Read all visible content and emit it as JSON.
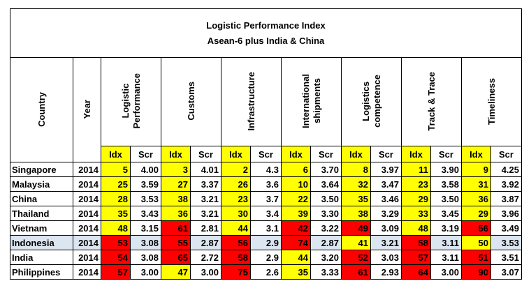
{
  "title": "Logistic Performance Index",
  "subtitle": "Asean-6 plus India & China",
  "headers": {
    "country": "Country",
    "year": "Year",
    "metrics": [
      [
        "Logistic",
        "Performance"
      ],
      [
        "Customs"
      ],
      [
        "Infrastructure"
      ],
      [
        "International",
        "shipments"
      ],
      [
        "Logistics",
        "competence"
      ],
      [
        "Track & Trace"
      ],
      [
        "Timeliness"
      ]
    ],
    "idx": "Idx",
    "scr": "Scr"
  },
  "colors": {
    "yellow": "#ffff00",
    "red": "#ff0000",
    "highlight_row": "#dce6f1"
  },
  "rows": [
    {
      "country": "Singapore",
      "year": "2014",
      "cells": [
        {
          "idx": "5",
          "scr": "4.00",
          "c": "y"
        },
        {
          "idx": "3",
          "scr": "4.01",
          "c": "y"
        },
        {
          "idx": "2",
          "scr": "4.3",
          "c": "y"
        },
        {
          "idx": "6",
          "scr": "3.70",
          "c": "y"
        },
        {
          "idx": "8",
          "scr": "3.97",
          "c": "y"
        },
        {
          "idx": "11",
          "scr": "3.90",
          "c": "y"
        },
        {
          "idx": "9",
          "scr": "4.25",
          "c": "y"
        }
      ]
    },
    {
      "country": "Malaysia",
      "year": "2014",
      "cells": [
        {
          "idx": "25",
          "scr": "3.59",
          "c": "y"
        },
        {
          "idx": "27",
          "scr": "3.37",
          "c": "y"
        },
        {
          "idx": "26",
          "scr": "3.6",
          "c": "y"
        },
        {
          "idx": "10",
          "scr": "3.64",
          "c": "y"
        },
        {
          "idx": "32",
          "scr": "3.47",
          "c": "y"
        },
        {
          "idx": "23",
          "scr": "3.58",
          "c": "y"
        },
        {
          "idx": "31",
          "scr": "3.92",
          "c": "y"
        }
      ]
    },
    {
      "country": "China",
      "year": "2014",
      "cells": [
        {
          "idx": "28",
          "scr": "3.53",
          "c": "y"
        },
        {
          "idx": "38",
          "scr": "3.21",
          "c": "y"
        },
        {
          "idx": "23",
          "scr": "3.7",
          "c": "y"
        },
        {
          "idx": "22",
          "scr": "3.50",
          "c": "y"
        },
        {
          "idx": "35",
          "scr": "3.46",
          "c": "y"
        },
        {
          "idx": "29",
          "scr": "3.50",
          "c": "y"
        },
        {
          "idx": "36",
          "scr": "3.87",
          "c": "y"
        }
      ]
    },
    {
      "country": "Thailand",
      "year": "2014",
      "cells": [
        {
          "idx": "35",
          "scr": "3.43",
          "c": "y"
        },
        {
          "idx": "36",
          "scr": "3.21",
          "c": "y"
        },
        {
          "idx": "30",
          "scr": "3.4",
          "c": "y"
        },
        {
          "idx": "39",
          "scr": "3.30",
          "c": "y"
        },
        {
          "idx": "38",
          "scr": "3.29",
          "c": "y"
        },
        {
          "idx": "33",
          "scr": "3.45",
          "c": "y"
        },
        {
          "idx": "29",
          "scr": "3.96",
          "c": "y"
        }
      ]
    },
    {
      "country": "Vietnam",
      "year": "2014",
      "cells": [
        {
          "idx": "48",
          "scr": "3.15",
          "c": "y"
        },
        {
          "idx": "61",
          "scr": "2.81",
          "c": "r"
        },
        {
          "idx": "44",
          "scr": "3.1",
          "c": "y"
        },
        {
          "idx": "42",
          "scr": "3.22",
          "c": "r"
        },
        {
          "idx": "49",
          "scr": "3.09",
          "c": "r"
        },
        {
          "idx": "48",
          "scr": "3.19",
          "c": "y"
        },
        {
          "idx": "56",
          "scr": "3.49",
          "c": "r"
        }
      ]
    },
    {
      "country": "Indonesia",
      "year": "2014",
      "highlight": true,
      "cells": [
        {
          "idx": "53",
          "scr": "3.08",
          "c": "r"
        },
        {
          "idx": "55",
          "scr": "2.87",
          "c": "r"
        },
        {
          "idx": "56",
          "scr": "2.9",
          "c": "r"
        },
        {
          "idx": "74",
          "scr": "2.87",
          "c": "r"
        },
        {
          "idx": "41",
          "scr": "3.21",
          "c": "y"
        },
        {
          "idx": "58",
          "scr": "3.11",
          "c": "r"
        },
        {
          "idx": "50",
          "scr": "3.53",
          "c": "y"
        }
      ]
    },
    {
      "country": "India",
      "year": "2014",
      "cells": [
        {
          "idx": "54",
          "scr": "3.08",
          "c": "r"
        },
        {
          "idx": "65",
          "scr": "2.72",
          "c": "r"
        },
        {
          "idx": "58",
          "scr": "2.9",
          "c": "r"
        },
        {
          "idx": "44",
          "scr": "3.20",
          "c": "y"
        },
        {
          "idx": "52",
          "scr": "3.03",
          "c": "r"
        },
        {
          "idx": "57",
          "scr": "3.11",
          "c": "r"
        },
        {
          "idx": "51",
          "scr": "3.51",
          "c": "r"
        }
      ]
    },
    {
      "country": "Philippines",
      "year": "2014",
      "cells": [
        {
          "idx": "57",
          "scr": "3.00",
          "c": "r"
        },
        {
          "idx": "47",
          "scr": "3.00",
          "c": "y"
        },
        {
          "idx": "75",
          "scr": "2.6",
          "c": "r"
        },
        {
          "idx": "35",
          "scr": "3.33",
          "c": "y"
        },
        {
          "idx": "61",
          "scr": "2.93",
          "c": "r"
        },
        {
          "idx": "64",
          "scr": "3.00",
          "c": "r"
        },
        {
          "idx": "90",
          "scr": "3.07",
          "c": "r"
        }
      ]
    }
  ]
}
